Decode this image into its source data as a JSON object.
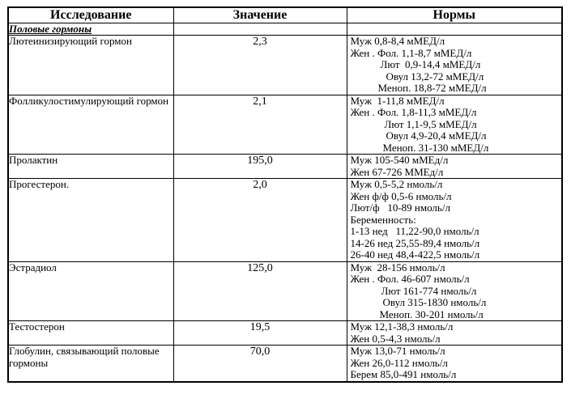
{
  "page": {
    "background_color": "#ffffff",
    "border_color": "#000000",
    "text_color": "#000000"
  },
  "table": {
    "headers": [
      "Исследование",
      "Значение",
      "Нормы"
    ],
    "section_title": "Половые гормоны",
    "rows": [
      {
        "name": "Лютеинизирующий гормон",
        "value": "2,3",
        "norms": [
          {
            "text": "Муж 0,8-8,4 мМЕД/л",
            "indent": 0
          },
          {
            "text": "Жен . Фол. 1,1-8,7 мМЕД/л",
            "indent": 0
          },
          {
            "text": "Лют  0,9-14,4 мМЕД/л",
            "indent": 37
          },
          {
            "text": "Овул 13,2-72 мМЕД/л",
            "indent": 44
          },
          {
            "text": "Меноп. 18,8-72 мМЕД/л",
            "indent": 34
          }
        ]
      },
      {
        "name": "Фолликулостимулирующий гормон",
        "value": "2,1",
        "norms": [
          {
            "text": "Муж  1-11,8 мМЕД/л",
            "indent": 0
          },
          {
            "text": "Жен . Фол. 1,8-11,3 мМЕД/л",
            "indent": 0
          },
          {
            "text": "Лют 1,1-9,5 мМЕД/л",
            "indent": 42
          },
          {
            "text": "Овул 4,9-20,4 мМЕД/л",
            "indent": 44
          },
          {
            "text": "Меноп. 31-130 мМЕД/л",
            "indent": 40
          }
        ]
      },
      {
        "name": "Пролактин",
        "value": "195,0",
        "norms": [
          {
            "text": "Муж 105-540 мМЕд/л",
            "indent": 0
          },
          {
            "text": "Жен 67-726 ММЕд/л",
            "indent": 0
          }
        ]
      },
      {
        "name": "Прогестерон.",
        "value": "2,0",
        "norms": [
          {
            "text": "Муж 0,5-5,2 нмоль/л",
            "indent": 0
          },
          {
            "text": "Жен ф/ф 0,5-6 нмоль/л",
            "indent": 0
          },
          {
            "text": "Лют/ф   10-89 нмоль/л",
            "indent": 0
          },
          {
            "text": "Беременность:",
            "indent": 0
          },
          {
            "text": "1-13 нед   11,22-90,0 нмоль/л",
            "indent": 0
          },
          {
            "text": "14-26 нед 25,55-89,4 нмоль/л",
            "indent": 0
          },
          {
            "text": "26-40 нед 48,4-422,5 нмоль/л",
            "indent": 0
          }
        ]
      },
      {
        "name": "Эстрадиол",
        "value": "125,0",
        "norms": [
          {
            "text": "Муж  28-156 нмоль/л",
            "indent": 0
          },
          {
            "text": "Жен . Фол. 46-607 нмоль/л",
            "indent": 0
          },
          {
            "text": "Лют 161-774 нмоль/л",
            "indent": 38
          },
          {
            "text": "Овул 315-1830 нмоль/л",
            "indent": 40
          },
          {
            "text": "Меноп. 30-201 нмоль/л",
            "indent": 36
          }
        ]
      },
      {
        "name": "Тестостерон",
        "value": "19,5",
        "norms": [
          {
            "text": "Муж 12,1-38,3 нмоль/л",
            "indent": 0
          },
          {
            "text": "Жен 0,5-4,3 нмоль/л",
            "indent": 0
          }
        ]
      },
      {
        "name": "Глобулин, связывающий половые гормоны",
        "value": "70,0",
        "norms": [
          {
            "text": "Муж 13,0-71 нмоль/л",
            "indent": 0
          },
          {
            "text": "Жен 26,0-112 нмоль/л",
            "indent": 0
          },
          {
            "text": "Берем 85,0-491 нмоль/л",
            "indent": 0
          }
        ]
      }
    ]
  }
}
